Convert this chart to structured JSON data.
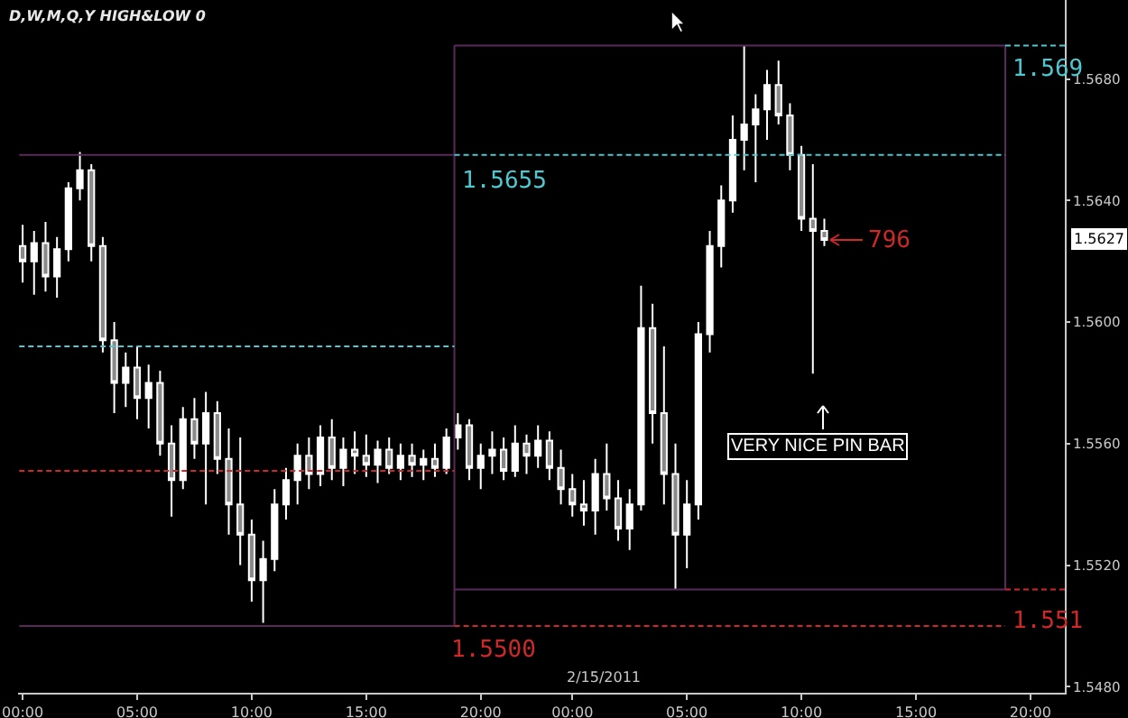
{
  "chart_data": {
    "type": "candlestick",
    "title": "D,W,M,Q,Y HIGH&LOW 0",
    "xlim": [
      "2011-02-13T23:48",
      "2011-02-15T21:30"
    ],
    "xticks": [
      {
        "value": "2011-02-14T00:00",
        "label": "00:00"
      },
      {
        "value": "2011-02-14T05:00",
        "label": "05:00"
      },
      {
        "value": "2011-02-14T10:00",
        "label": "10:00"
      },
      {
        "value": "2011-02-14T15:00",
        "label": "15:00"
      },
      {
        "value": "2011-02-14T20:00",
        "label": "20:00"
      },
      {
        "value": "2011-02-15T00:00",
        "label": "00:00"
      },
      {
        "value": "2011-02-15T05:00",
        "label": "05:00"
      },
      {
        "value": "2011-02-15T10:00",
        "label": "10:00"
      },
      {
        "value": "2011-02-15T15:00",
        "label": "15:00"
      },
      {
        "value": "2011-02-15T20:00",
        "label": "20:00"
      }
    ],
    "ylim": [
      1.5478,
      1.5706
    ],
    "yticks": [
      {
        "value": 1.548,
        "label": "1.5480"
      },
      {
        "value": 1.552,
        "label": "1.5520"
      },
      {
        "value": 1.556,
        "label": "1.5560"
      },
      {
        "value": 1.56,
        "label": "1.5600"
      },
      {
        "value": 1.564,
        "label": "1.5640"
      },
      {
        "value": 1.568,
        "label": "1.5680"
      }
    ],
    "grid": false,
    "series": [
      {
        "type": "line",
        "color": "#5a2a5a",
        "line_style": "solid",
        "x": [
          "2011-02-13T23:51",
          "2011-02-14T18:51"
        ],
        "values": [
          1.5655,
          1.5655
        ]
      },
      {
        "type": "line",
        "color": "#5a2a5a",
        "line_style": "solid",
        "x": [
          "2011-02-13T23:51",
          "2011-02-14T18:51"
        ],
        "values": [
          1.55,
          1.55
        ]
      },
      {
        "type": "line",
        "color": "#5a2a5a",
        "line_style": "solid",
        "x": [
          "2011-02-14T18:51",
          "2011-02-14T18:51"
        ],
        "values": [
          1.55,
          1.5691
        ]
      },
      {
        "type": "line",
        "color": "#5a2a5a",
        "line_style": "solid",
        "x": [
          "2011-02-14T18:51",
          "2011-02-15T18:54"
        ],
        "values": [
          1.5691,
          1.5691
        ]
      },
      {
        "type": "line",
        "color": "#5a2a5a",
        "line_style": "solid",
        "x": [
          "2011-02-14T18:51",
          "2011-02-15T18:54"
        ],
        "values": [
          1.5512,
          1.5512
        ]
      },
      {
        "type": "line",
        "color": "#5a2a5a",
        "line_style": "solid",
        "x": [
          "2011-02-15T18:54",
          "2011-02-15T18:54"
        ],
        "values": [
          1.5512,
          1.5691
        ]
      },
      {
        "type": "line",
        "color": "#4fc8d0",
        "line_style": "dashed",
        "x": [
          "2011-02-13T23:51",
          "2011-02-14T18:51"
        ],
        "values": [
          1.5592,
          1.5592
        ]
      },
      {
        "type": "line",
        "color": "#d02828",
        "line_style": "dashed",
        "x": [
          "2011-02-13T23:51",
          "2011-02-14T18:51"
        ],
        "values": [
          1.5551,
          1.5551
        ]
      },
      {
        "type": "line",
        "color": "#4fc8d0",
        "line_style": "dashed",
        "x": [
          "2011-02-14T18:51",
          "2011-02-15T18:54"
        ],
        "values": [
          1.5655,
          1.5655
        ]
      },
      {
        "type": "line",
        "color": "#d02828",
        "line_style": "dashed",
        "x": [
          "2011-02-14T18:51",
          "2011-02-15T18:54"
        ],
        "values": [
          1.55,
          1.55
        ]
      },
      {
        "type": "line",
        "color": "#4fc8d0",
        "line_style": "dashed",
        "x": [
          "2011-02-15T18:54",
          "2011-02-15T21:30"
        ],
        "values": [
          1.5691,
          1.5691
        ]
      },
      {
        "type": "line",
        "color": "#d02828",
        "line_style": "dashed",
        "x": [
          "2011-02-15T18:54",
          "2011-02-15T21:30"
        ],
        "values": [
          1.5512,
          1.5512
        ]
      },
      {
        "color": "#ffffff",
        "x": [
          "2011-02-14T00:00",
          "2011-02-14T00:30",
          "2011-02-14T01:00",
          "2011-02-14T01:30",
          "2011-02-14T02:00",
          "2011-02-14T02:30",
          "2011-02-14T03:00",
          "2011-02-14T03:30",
          "2011-02-14T04:00",
          "2011-02-14T04:30",
          "2011-02-14T05:00",
          "2011-02-14T05:30",
          "2011-02-14T06:00",
          "2011-02-14T06:30",
          "2011-02-14T07:00",
          "2011-02-14T07:30",
          "2011-02-14T08:00",
          "2011-02-14T08:30",
          "2011-02-14T09:00",
          "2011-02-14T09:30",
          "2011-02-14T10:00",
          "2011-02-14T10:30",
          "2011-02-14T11:00",
          "2011-02-14T11:30",
          "2011-02-14T12:00",
          "2011-02-14T12:30",
          "2011-02-14T13:00",
          "2011-02-14T13:30",
          "2011-02-14T14:00",
          "2011-02-14T14:30",
          "2011-02-14T15:00",
          "2011-02-14T15:30",
          "2011-02-14T16:00",
          "2011-02-14T16:30",
          "2011-02-14T17:00",
          "2011-02-14T17:30",
          "2011-02-14T18:00",
          "2011-02-14T18:30",
          "2011-02-14T19:00",
          "2011-02-14T19:30",
          "2011-02-14T20:00",
          "2011-02-14T20:30",
          "2011-02-14T21:00",
          "2011-02-14T21:30",
          "2011-02-14T22:00",
          "2011-02-14T22:30",
          "2011-02-14T23:00",
          "2011-02-14T23:30",
          "2011-02-15T00:00",
          "2011-02-15T00:30",
          "2011-02-15T01:00",
          "2011-02-15T01:30",
          "2011-02-15T02:00",
          "2011-02-15T02:30",
          "2011-02-15T03:00",
          "2011-02-15T03:30",
          "2011-02-15T04:00",
          "2011-02-15T04:30",
          "2011-02-15T05:00",
          "2011-02-15T05:30",
          "2011-02-15T06:00",
          "2011-02-15T06:30",
          "2011-02-15T07:00",
          "2011-02-15T07:30",
          "2011-02-15T08:00",
          "2011-02-15T08:30",
          "2011-02-15T09:00",
          "2011-02-15T09:30",
          "2011-02-15T10:00",
          "2011-02-15T10:30",
          "2011-02-15T11:00"
        ],
        "ohlc": [
          [
            1.5625,
            1.5632,
            1.5613,
            1.562
          ],
          [
            1.562,
            1.563,
            1.5609,
            1.5626
          ],
          [
            1.5626,
            1.5633,
            1.561,
            1.5615
          ],
          [
            1.5615,
            1.5628,
            1.5608,
            1.5624
          ],
          [
            1.5624,
            1.5646,
            1.562,
            1.5644
          ],
          [
            1.5644,
            1.5656,
            1.564,
            1.565
          ],
          [
            1.565,
            1.5652,
            1.562,
            1.5625
          ],
          [
            1.5625,
            1.5628,
            1.559,
            1.5594
          ],
          [
            1.5594,
            1.56,
            1.557,
            1.558
          ],
          [
            1.558,
            1.559,
            1.5572,
            1.5585
          ],
          [
            1.5585,
            1.5592,
            1.5568,
            1.5575
          ],
          [
            1.5575,
            1.5586,
            1.5565,
            1.558
          ],
          [
            1.558,
            1.5584,
            1.5556,
            1.556
          ],
          [
            1.556,
            1.5566,
            1.5536,
            1.5548
          ],
          [
            1.5548,
            1.5572,
            1.5545,
            1.5568
          ],
          [
            1.5568,
            1.5575,
            1.5555,
            1.556
          ],
          [
            1.556,
            1.5577,
            1.554,
            1.557
          ],
          [
            1.557,
            1.5574,
            1.555,
            1.5555
          ],
          [
            1.5555,
            1.5565,
            1.553,
            1.554
          ],
          [
            1.554,
            1.5562,
            1.552,
            1.553
          ],
          [
            1.553,
            1.5535,
            1.5508,
            1.5515
          ],
          [
            1.5515,
            1.5528,
            1.5501,
            1.5522
          ],
          [
            1.5522,
            1.5545,
            1.5518,
            1.554
          ],
          [
            1.554,
            1.5552,
            1.5535,
            1.5548
          ],
          [
            1.5548,
            1.556,
            1.554,
            1.5556
          ],
          [
            1.5556,
            1.5562,
            1.5545,
            1.555
          ],
          [
            1.555,
            1.5566,
            1.5546,
            1.5562
          ],
          [
            1.5562,
            1.5568,
            1.5548,
            1.5552
          ],
          [
            1.5552,
            1.5562,
            1.5546,
            1.5558
          ],
          [
            1.5558,
            1.5564,
            1.555,
            1.5556
          ],
          [
            1.5556,
            1.5563,
            1.5549,
            1.5553
          ],
          [
            1.5553,
            1.5561,
            1.5547,
            1.5558
          ],
          [
            1.5558,
            1.5562,
            1.555,
            1.5552
          ],
          [
            1.5552,
            1.556,
            1.5548,
            1.5556
          ],
          [
            1.5556,
            1.556,
            1.5549,
            1.5553
          ],
          [
            1.5553,
            1.5558,
            1.5548,
            1.5555
          ],
          [
            1.5555,
            1.556,
            1.5549,
            1.5552
          ],
          [
            1.5552,
            1.5565,
            1.555,
            1.5562
          ],
          [
            1.5562,
            1.557,
            1.5558,
            1.5566
          ],
          [
            1.5566,
            1.5568,
            1.5548,
            1.5552
          ],
          [
            1.5552,
            1.556,
            1.5545,
            1.5556
          ],
          [
            1.5556,
            1.5564,
            1.555,
            1.5558
          ],
          [
            1.5558,
            1.5562,
            1.5548,
            1.5551
          ],
          [
            1.5551,
            1.5566,
            1.5549,
            1.556
          ],
          [
            1.556,
            1.5563,
            1.555,
            1.5556
          ],
          [
            1.5556,
            1.5566,
            1.5552,
            1.5561
          ],
          [
            1.5561,
            1.5564,
            1.5548,
            1.5552
          ],
          [
            1.5552,
            1.5558,
            1.554,
            1.5545
          ],
          [
            1.5545,
            1.555,
            1.5536,
            1.554
          ],
          [
            1.554,
            1.5548,
            1.5533,
            1.5538
          ],
          [
            1.5538,
            1.5555,
            1.553,
            1.555
          ],
          [
            1.555,
            1.556,
            1.5538,
            1.5542
          ],
          [
            1.5542,
            1.5548,
            1.5528,
            1.5532
          ],
          [
            1.5532,
            1.5545,
            1.5525,
            1.554
          ],
          [
            1.554,
            1.5612,
            1.5538,
            1.5598
          ],
          [
            1.5598,
            1.5606,
            1.556,
            1.557
          ],
          [
            1.557,
            1.5592,
            1.554,
            1.555
          ],
          [
            1.555,
            1.556,
            1.5512,
            1.553
          ],
          [
            1.553,
            1.5548,
            1.5519,
            1.554
          ],
          [
            1.554,
            1.56,
            1.5535,
            1.5596
          ],
          [
            1.5596,
            1.563,
            1.559,
            1.5625
          ],
          [
            1.5625,
            1.5645,
            1.5618,
            1.564
          ],
          [
            1.564,
            1.5668,
            1.5636,
            1.566
          ],
          [
            1.566,
            1.5691,
            1.565,
            1.5665
          ],
          [
            1.5665,
            1.5675,
            1.5646,
            1.567
          ],
          [
            1.567,
            1.5683,
            1.566,
            1.5678
          ],
          [
            1.5678,
            1.5686,
            1.5665,
            1.5668
          ],
          [
            1.5668,
            1.5672,
            1.565,
            1.5655
          ],
          [
            1.5655,
            1.5658,
            1.563,
            1.5634
          ],
          [
            1.5634,
            1.5652,
            1.5583,
            1.563
          ],
          [
            1.563,
            1.5634,
            1.5625,
            1.5627
          ]
        ]
      }
    ],
    "annotations": [
      {
        "text": "1.5655",
        "x": "2011-02-14T19:00",
        "y": 1.5652
      },
      "1.5500",
      "1.569",
      "1.551",
      {
        "text": "796",
        "x": "2011-02-15T11:00",
        "y": 1.5627
      },
      "VERY NICE PIN BAR",
      "1.5627",
      "2/15/2011"
    ]
  }
}
